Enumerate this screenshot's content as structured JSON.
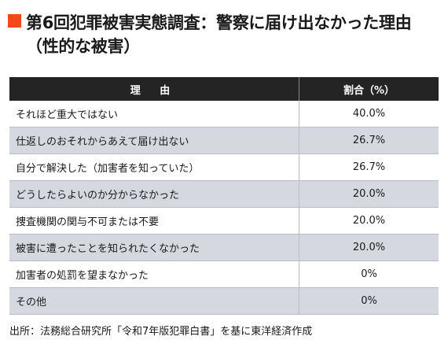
{
  "title": "第6回犯罪被害実態調査：警察に届け出なかった理由（性的な被害）",
  "colors": {
    "title_marker": "#f04a1a",
    "header_bg": "#242424",
    "row_alt_bg": "#d5d8de"
  },
  "table": {
    "headers": {
      "reason": "理 由",
      "percent": "割合（%）"
    },
    "rows": [
      {
        "reason": "それほど重大ではない",
        "percent": "40.0%"
      },
      {
        "reason": "仕返しのおそれからあえて届け出ない",
        "percent": "26.7%"
      },
      {
        "reason": "自分で解決した（加害者を知っていた）",
        "percent": "26.7%"
      },
      {
        "reason": "どうしたらよいのか分からなかった",
        "percent": "20.0%"
      },
      {
        "reason": "捜査機関の関与不可または不要",
        "percent": "20.0%"
      },
      {
        "reason": "被害に遭ったことを知られたくなかった",
        "percent": "20.0%"
      },
      {
        "reason": "加害者の処罰を望まなかった",
        "percent": "0%"
      },
      {
        "reason": "その他",
        "percent": "0%"
      }
    ]
  },
  "source": "出所：法務総合研究所「令和7年版犯罪白書」を基に東洋経済作成"
}
